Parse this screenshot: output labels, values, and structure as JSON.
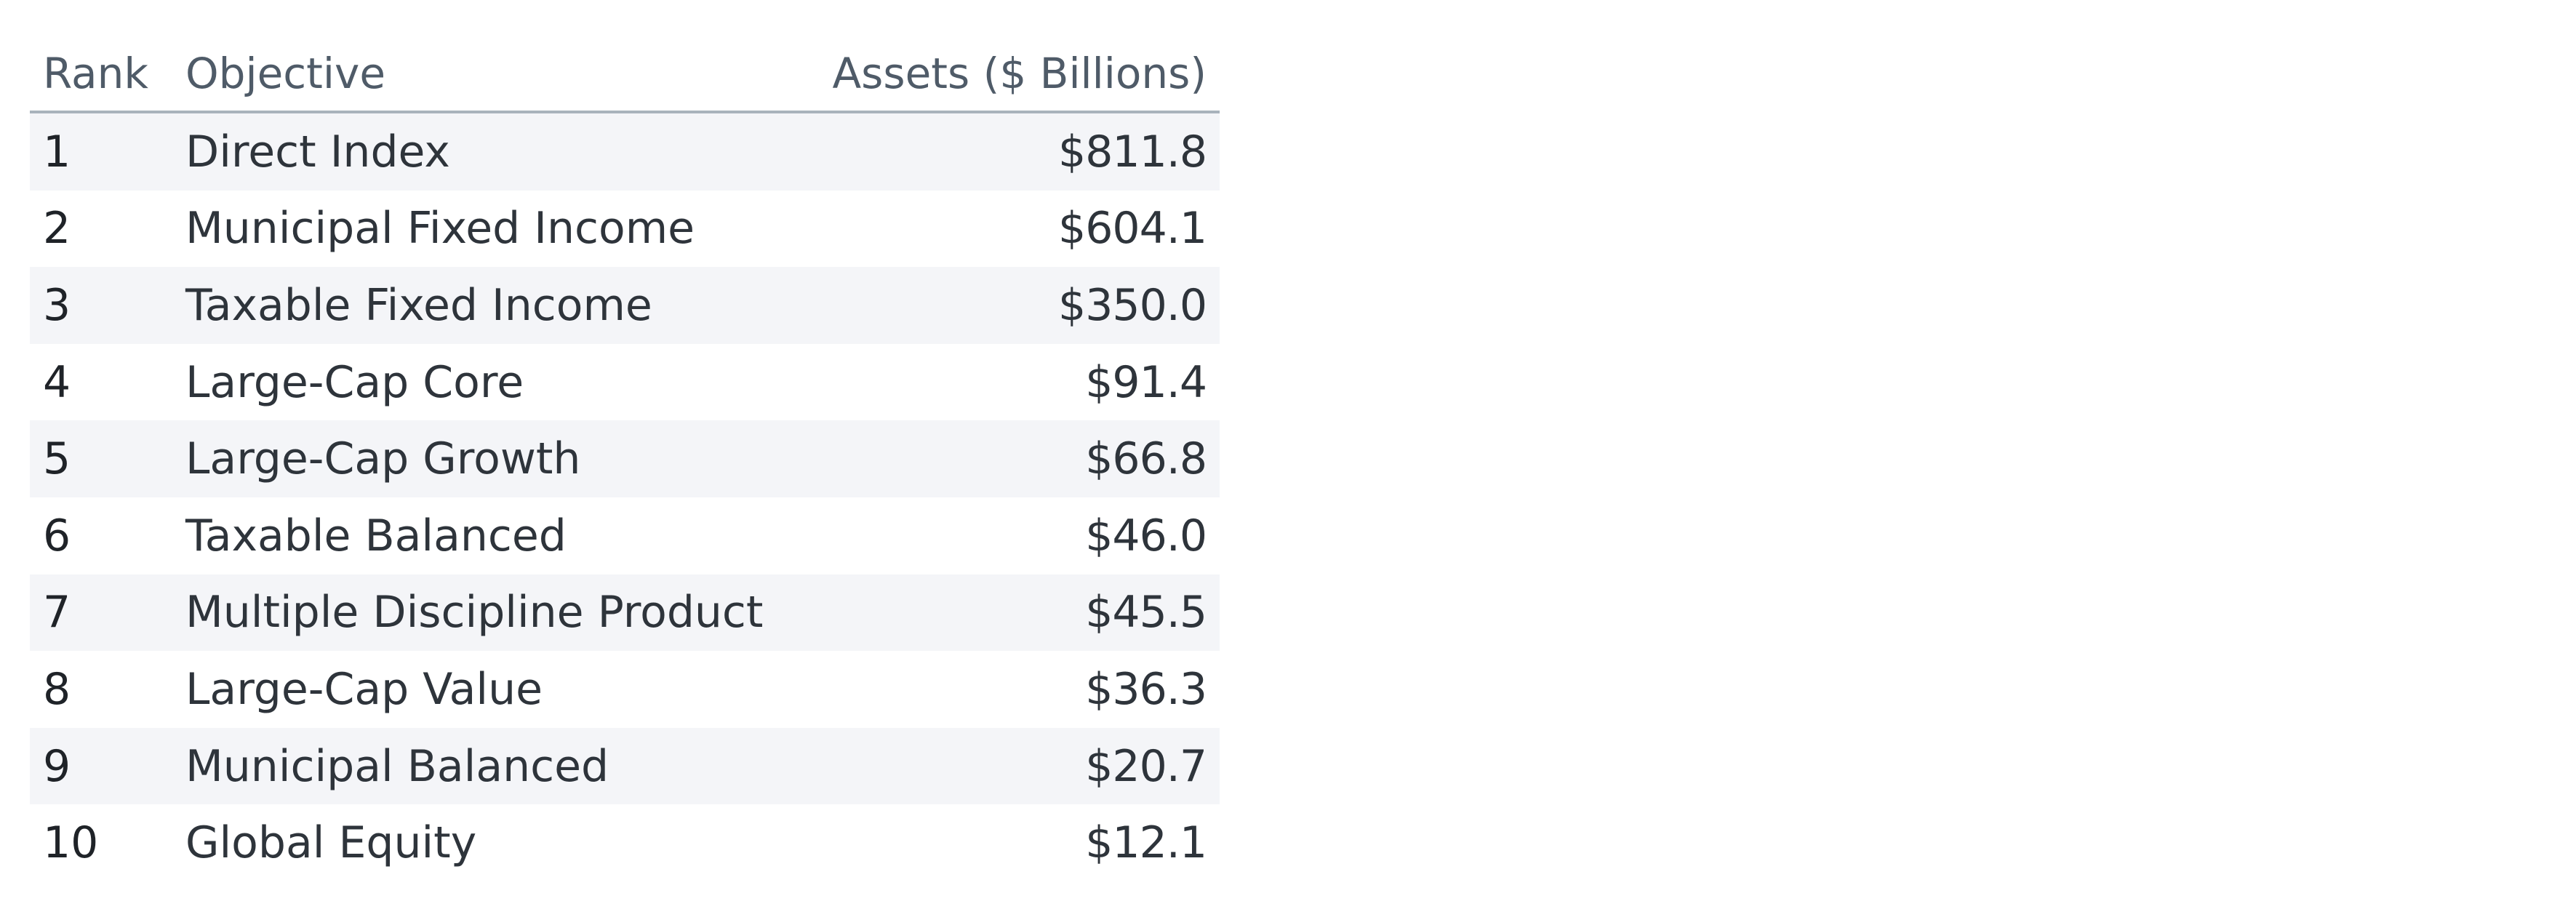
{
  "table": {
    "headers": {
      "rank": "Rank",
      "objective": "Objective",
      "assets": "Assets ($ Billions)"
    },
    "rows": [
      {
        "rank": "1",
        "objective": "Direct Index",
        "assets": "$811.8"
      },
      {
        "rank": "2",
        "objective": "Municipal Fixed Income",
        "assets": "$604.1"
      },
      {
        "rank": "3",
        "objective": "Taxable Fixed Income",
        "assets": "$350.0"
      },
      {
        "rank": "4",
        "objective": "Large-Cap Core",
        "assets": "$91.4"
      },
      {
        "rank": "5",
        "objective": "Large-Cap Growth",
        "assets": "$66.8"
      },
      {
        "rank": "6",
        "objective": "Taxable Balanced",
        "assets": "$46.0"
      },
      {
        "rank": "7",
        "objective": "Multiple Discipline Product",
        "assets": "$45.5"
      },
      {
        "rank": "8",
        "objective": "Large-Cap Value",
        "assets": "$36.3"
      },
      {
        "rank": "9",
        "objective": "Municipal Balanced",
        "assets": "$20.7"
      },
      {
        "rank": "10",
        "objective": "Global Equity",
        "assets": "$12.1"
      }
    ]
  },
  "colors": {
    "header_text": "#4f5b68",
    "body_text": "#2e343b",
    "stripe": "#f4f5f8",
    "header_rule": "#a9b3bc"
  }
}
